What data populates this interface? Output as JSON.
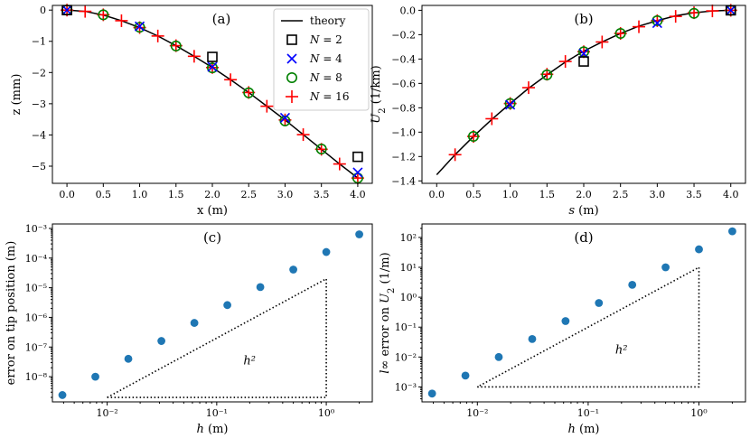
{
  "chart_data": [
    {
      "id": "a",
      "type": "line",
      "panel_label": "(a)",
      "xlabel": "x (m)",
      "ylabel": "z (mm)",
      "xlim": [
        -0.2,
        4.2
      ],
      "ylim": [
        -5.55,
        0.15
      ],
      "xticks": [
        0.0,
        0.5,
        1.0,
        1.5,
        2.0,
        2.5,
        3.0,
        3.5,
        4.0
      ],
      "xtick_labels": [
        "0.0",
        "0.5",
        "1.0",
        "1.5",
        "2.0",
        "2.5",
        "3.0",
        "3.5",
        "4.0"
      ],
      "yticks": [
        0,
        -1,
        -2,
        -3,
        -4,
        -5
      ],
      "ytick_labels": [
        "0",
        "−1",
        "−2",
        "−3",
        "−4",
        "−5"
      ],
      "legend": {
        "placement": "top-right",
        "entries": [
          {
            "name": "theory",
            "marker": "line",
            "color": "#000000"
          },
          {
            "name": "N = 2",
            "marker": "square",
            "color": "#000000"
          },
          {
            "name": "N = 4",
            "marker": "x",
            "color": "#0000ff"
          },
          {
            "name": "N = 8",
            "marker": "circle",
            "color": "#008000"
          },
          {
            "name": "N = 16",
            "marker": "plus",
            "color": "#ff0000"
          }
        ]
      },
      "theory": {
        "name": "theory",
        "x": [
          0.0,
          0.25,
          0.5,
          0.75,
          1.0,
          1.25,
          1.5,
          1.75,
          2.0,
          2.25,
          2.5,
          2.75,
          3.0,
          3.25,
          3.5,
          3.75,
          4.0
        ],
        "y": [
          0.0,
          -0.04,
          -0.16,
          -0.34,
          -0.56,
          -0.83,
          -1.14,
          -1.48,
          -1.84,
          -2.23,
          -2.64,
          -3.08,
          -3.52,
          -3.99,
          -4.46,
          -4.93,
          -5.38
        ]
      },
      "series": [
        {
          "name": "N = 16",
          "marker": "plus",
          "color": "#ff0000",
          "x": [
            0.0,
            0.25,
            0.5,
            0.75,
            1.0,
            1.25,
            1.5,
            1.75,
            2.0,
            2.25,
            2.5,
            2.75,
            3.0,
            3.25,
            3.5,
            3.75,
            4.0
          ],
          "y": [
            0.0,
            -0.04,
            -0.15,
            -0.34,
            -0.56,
            -0.83,
            -1.14,
            -1.48,
            -1.84,
            -2.23,
            -2.64,
            -3.08,
            -3.52,
            -3.99,
            -4.46,
            -4.93,
            -5.38
          ]
        },
        {
          "name": "N = 8",
          "marker": "circle",
          "color": "#008000",
          "x": [
            0.0,
            0.5,
            1.0,
            1.5,
            2.0,
            2.5,
            3.0,
            3.5,
            4.0
          ],
          "y": [
            0.0,
            -0.15,
            -0.55,
            -1.15,
            -1.85,
            -2.65,
            -3.55,
            -4.45,
            -5.38
          ]
        },
        {
          "name": "N = 4",
          "marker": "x",
          "color": "#0000ff",
          "x": [
            0.0,
            1.0,
            2.0,
            3.0,
            4.0
          ],
          "y": [
            0.0,
            -0.52,
            -1.82,
            -3.45,
            -5.2
          ]
        },
        {
          "name": "N = 2",
          "marker": "square",
          "color": "#000000",
          "x": [
            0.0,
            2.0,
            4.0
          ],
          "y": [
            0.0,
            -1.5,
            -4.7
          ]
        }
      ]
    },
    {
      "id": "b",
      "type": "line",
      "panel_label": "(b)",
      "xlabel": "s (m)",
      "ylabel": "U2 (1/km)",
      "xlim": [
        -0.2,
        4.2
      ],
      "ylim": [
        -1.42,
        0.04
      ],
      "xticks": [
        0.0,
        0.5,
        1.0,
        1.5,
        2.0,
        2.5,
        3.0,
        3.5,
        4.0
      ],
      "xtick_labels": [
        "0.0",
        "0.5",
        "1.0",
        "1.5",
        "2.0",
        "2.5",
        "3.0",
        "3.5",
        "4.0"
      ],
      "yticks": [
        0.0,
        -0.2,
        -0.4,
        -0.6,
        -0.8,
        -1.0,
        -1.2,
        -1.4
      ],
      "ytick_labels": [
        "0.0",
        "−0.2",
        "−0.4",
        "−0.6",
        "−0.8",
        "−1.0",
        "−1.2",
        "−1.4"
      ],
      "theory": {
        "name": "theory",
        "x": [
          0.0,
          0.25,
          0.5,
          0.75,
          1.0,
          1.25,
          1.5,
          1.75,
          2.0,
          2.25,
          2.5,
          2.75,
          3.0,
          3.25,
          3.5,
          3.75,
          4.0
        ],
        "y": [
          -1.35,
          -1.185,
          -1.035,
          -0.895,
          -0.765,
          -0.64,
          -0.53,
          -0.425,
          -0.335,
          -0.26,
          -0.19,
          -0.13,
          -0.085,
          -0.045,
          -0.02,
          -0.005,
          0.0
        ]
      },
      "series": [
        {
          "name": "N = 16",
          "marker": "plus",
          "color": "#ff0000",
          "x": [
            0.25,
            0.5,
            0.75,
            1.0,
            1.25,
            1.5,
            1.75,
            2.0,
            2.25,
            2.5,
            2.75,
            3.0,
            3.25,
            3.5,
            3.75,
            4.0
          ],
          "y": [
            -1.185,
            -1.035,
            -0.89,
            -0.765,
            -0.635,
            -0.525,
            -0.42,
            -0.34,
            -0.26,
            -0.19,
            -0.135,
            -0.085,
            -0.05,
            -0.02,
            -0.005,
            0.0
          ]
        },
        {
          "name": "N = 8",
          "marker": "circle",
          "color": "#008000",
          "x": [
            0.5,
            1.0,
            1.5,
            2.0,
            2.5,
            3.0,
            3.5,
            4.0
          ],
          "y": [
            -1.035,
            -0.765,
            -0.53,
            -0.34,
            -0.19,
            -0.085,
            -0.025,
            0.0
          ]
        },
        {
          "name": "N = 4",
          "marker": "x",
          "color": "#0000ff",
          "x": [
            1.0,
            2.0,
            3.0,
            4.0
          ],
          "y": [
            -0.775,
            -0.355,
            -0.105,
            0.0
          ]
        },
        {
          "name": "N = 2",
          "marker": "square",
          "color": "#000000",
          "x": [
            2.0,
            4.0
          ],
          "y": [
            -0.42,
            0.0
          ]
        }
      ]
    },
    {
      "id": "c",
      "type": "scatter",
      "scale": "log-log",
      "panel_label": "(c)",
      "xlabel": "h (m)",
      "ylabel": "error on tip position (m)",
      "xlim_log10": [
        -2.5,
        0.42
      ],
      "ylim_log10": [
        -8.85,
        -2.85
      ],
      "xticks_log10": [
        -2,
        -1,
        0
      ],
      "xtick_labels": [
        "10⁻²",
        "10⁻¹",
        "10⁰"
      ],
      "yticks_log10": [
        -8,
        -7,
        -6,
        -5,
        -4,
        -3
      ],
      "ytick_labels": [
        "10⁻⁸",
        "10⁻⁷",
        "10⁻⁶",
        "10⁻⁵",
        "10⁻⁴",
        "10⁻³"
      ],
      "series": [
        {
          "name": "error",
          "color": "#1f77b4",
          "h": [
            0.0039,
            0.0078,
            0.0156,
            0.03125,
            0.0625,
            0.125,
            0.25,
            0.5,
            1.0,
            2.0
          ],
          "error": [
            2.4e-09,
            1e-08,
            4e-08,
            1.6e-07,
            6.5e-07,
            2.6e-06,
            1.05e-05,
            4.1e-05,
            0.00016,
            0.00063
          ]
        }
      ],
      "triangle": {
        "label": "h²",
        "h_range": [
          0.01,
          1.0
        ],
        "value_range": [
          2e-09,
          2e-05
        ]
      }
    },
    {
      "id": "d",
      "type": "scatter",
      "scale": "log-log",
      "panel_label": "(d)",
      "xlabel": "h (m)",
      "ylabel": "l∞ error on U2 (1/m)",
      "xlim_log10": [
        -2.5,
        0.42
      ],
      "ylim_log10": [
        -3.5,
        2.45
      ],
      "xticks_log10": [
        -2,
        -1,
        0
      ],
      "xtick_labels": [
        "10⁻²",
        "10⁻¹",
        "10⁰"
      ],
      "yticks_log10": [
        -3,
        -2,
        -1,
        0,
        1,
        2
      ],
      "ytick_labels": [
        "10⁻³",
        "10⁻²",
        "10⁻¹",
        "10⁰",
        "10¹",
        "10²"
      ],
      "series": [
        {
          "name": "error",
          "color": "#1f77b4",
          "h": [
            0.0039,
            0.0078,
            0.0156,
            0.03125,
            0.0625,
            0.125,
            0.25,
            0.5,
            1.0,
            2.0
          ],
          "error": [
            0.0006,
            0.0024,
            0.01,
            0.04,
            0.16,
            0.64,
            2.6,
            10.0,
            40.0,
            160.0
          ]
        }
      ],
      "triangle": {
        "label": "h²",
        "h_range": [
          0.01,
          1.0
        ],
        "value_range": [
          0.001,
          10.0
        ]
      }
    }
  ]
}
